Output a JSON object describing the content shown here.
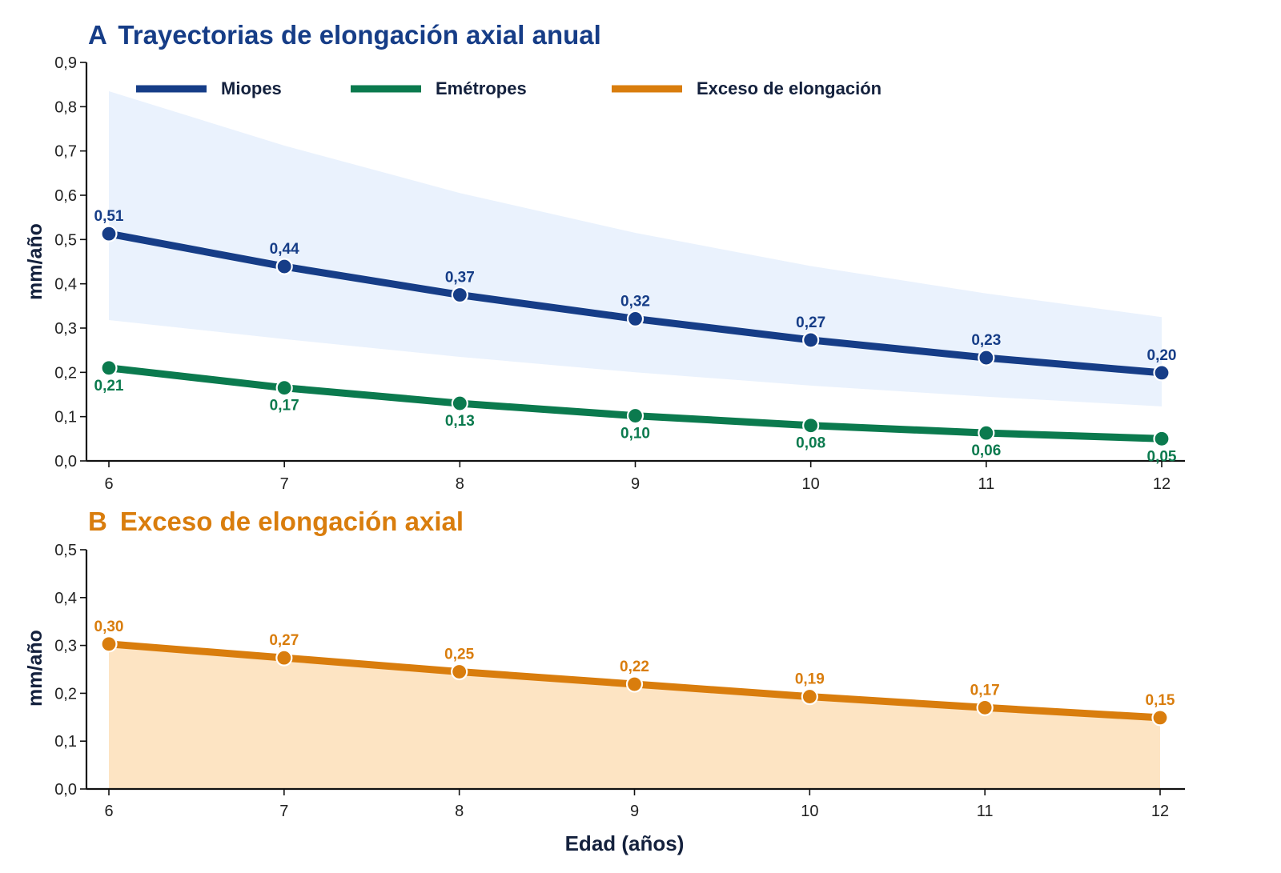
{
  "colors": {
    "miopes": "#163d87",
    "emetropes": "#0b7a4e",
    "exceso": "#d97d0d",
    "band": "#eaf2fd",
    "area": "#fde4c3",
    "axis": "#111111"
  },
  "chart_data": [
    {
      "type": "line",
      "panel_letter": "A",
      "title": "Trayectorias de elongación axial anual",
      "xlabel": "",
      "ylabel": "mm/año",
      "x": [
        6,
        7,
        8,
        9,
        10,
        11,
        12
      ],
      "x_tick_labels": [
        "6",
        "7",
        "8",
        "9",
        "10",
        "11",
        "12"
      ],
      "ylim": [
        0,
        0.9
      ],
      "y_ticks": [
        0,
        0.1,
        0.2,
        0.3,
        0.4,
        0.5,
        0.6,
        0.7,
        0.8,
        0.9
      ],
      "y_tick_labels": [
        "0,0",
        "0,1",
        "0,2",
        "0,3",
        "0,4",
        "0,5",
        "0,6",
        "0,7",
        "0,8",
        "0,9"
      ],
      "grid": false,
      "legend_position": "top",
      "legend": [
        "Miopes",
        "Emétropes",
        "Exceso de elongación"
      ],
      "series": [
        {
          "name": "Miopes",
          "values": [
            0.513,
            0.439,
            0.375,
            0.321,
            0.273,
            0.233,
            0.199
          ],
          "labels": [
            "0,51",
            "0,44",
            "0,37",
            "0,32",
            "0,27",
            "0,23",
            "0,20"
          ],
          "band_upper": [
            0.835,
            0.712,
            0.605,
            0.515,
            0.44,
            0.378,
            0.325
          ],
          "band_lower": [
            0.318,
            0.275,
            0.235,
            0.2,
            0.17,
            0.145,
            0.123
          ]
        },
        {
          "name": "Emétropes",
          "values": [
            0.21,
            0.165,
            0.13,
            0.102,
            0.08,
            0.063,
            0.05
          ],
          "labels": [
            "0,21",
            "0,17",
            "0,13",
            "0,10",
            "0,08",
            "0,06",
            "0,05"
          ]
        }
      ]
    },
    {
      "type": "area",
      "panel_letter": "B",
      "title": "Exceso de elongación axial",
      "xlabel": "Edad (años)",
      "ylabel": "mm/año",
      "x": [
        6,
        7,
        8,
        9,
        10,
        11,
        12
      ],
      "x_tick_labels": [
        "6",
        "7",
        "8",
        "9",
        "10",
        "11",
        "12"
      ],
      "ylim": [
        0,
        0.5
      ],
      "y_ticks": [
        0,
        0.1,
        0.2,
        0.3,
        0.4,
        0.5
      ],
      "y_tick_labels": [
        "0,0",
        "0,1",
        "0,2",
        "0,3",
        "0,4",
        "0,5"
      ],
      "grid": false,
      "series": [
        {
          "name": "Exceso de elongación",
          "values": [
            0.303,
            0.274,
            0.245,
            0.219,
            0.193,
            0.17,
            0.149
          ],
          "labels": [
            "0,30",
            "0,27",
            "0,25",
            "0,22",
            "0,19",
            "0,17",
            "0,15"
          ]
        }
      ]
    }
  ]
}
